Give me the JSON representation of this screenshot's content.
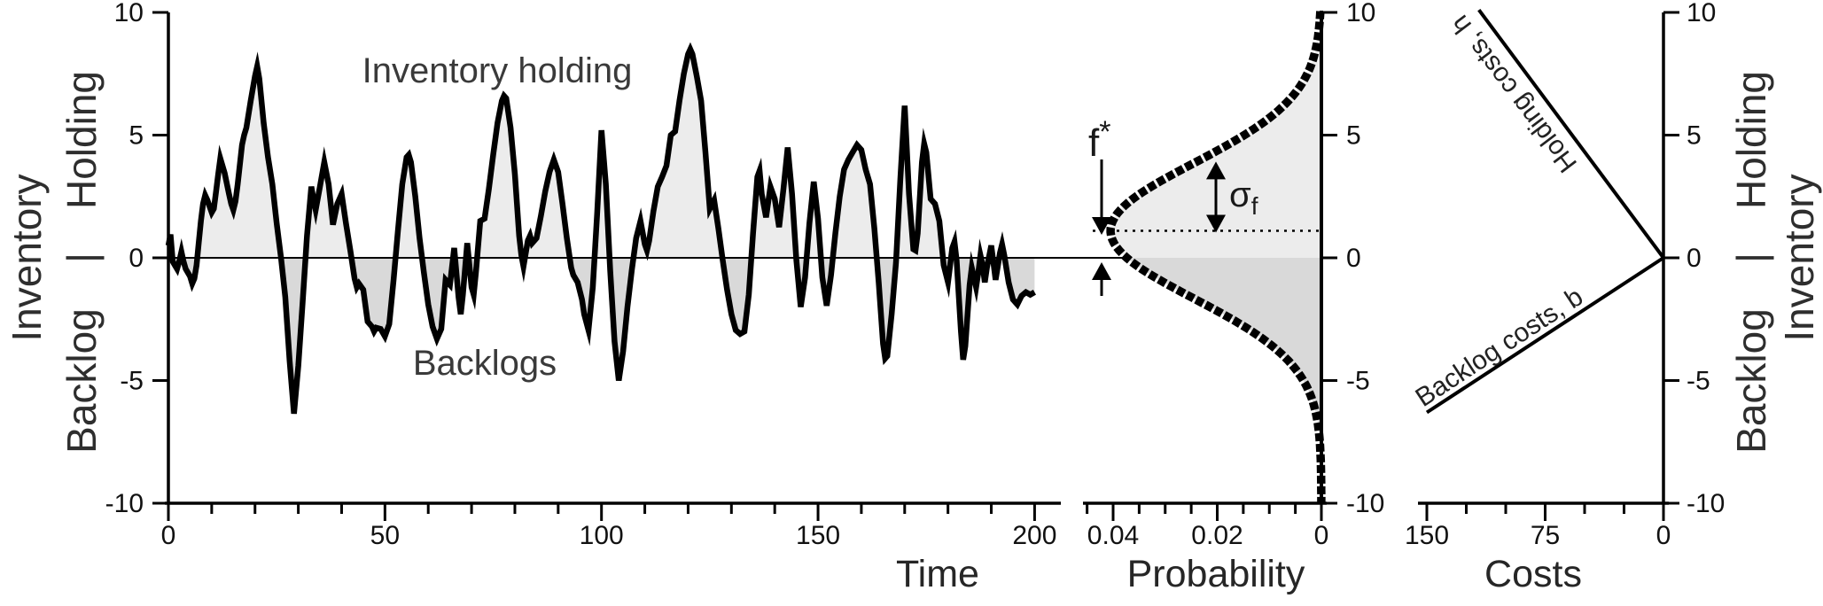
{
  "figure": {
    "colors": {
      "ink": "#000000",
      "tick_text": "#111111",
      "label_text": "#2e2e2e",
      "annotation_text": "#3a3a3a",
      "fill_above_zero": "#ececec",
      "fill_below_zero": "#d9d9d9",
      "background": "#ffffff"
    }
  },
  "chart_data": [
    {
      "id": "inventory-time-series",
      "type": "line",
      "xlabel": "Time",
      "y_axis_label": {
        "outer": "Inventory",
        "upper": "Holding",
        "divider": "|",
        "lower": "Backlog"
      },
      "xlim": [
        0,
        200
      ],
      "ylim": [
        -10,
        10
      ],
      "x_major_ticks": [
        0,
        50,
        100,
        150,
        200
      ],
      "x_minor_tick_step": 10,
      "y_major_ticks": [
        10,
        5,
        0,
        -5,
        -10
      ],
      "zero_line": true,
      "grid": false,
      "annotations": {
        "above_label": "Inventory holding",
        "below_label": "Backlogs"
      },
      "series": [
        {
          "name": "inventory",
          "points": [
            [
              0,
              0.5
            ],
            [
              0.5,
              0.95
            ],
            [
              1,
              -0.15
            ],
            [
              1.5,
              -0.3
            ],
            [
              2,
              -0.45
            ],
            [
              2.5,
              -0.15
            ],
            [
              3,
              0.25
            ],
            [
              3.5,
              -0.15
            ],
            [
              4,
              -0.45
            ],
            [
              5,
              -0.75
            ],
            [
              5.5,
              -1.05
            ],
            [
              6,
              -0.85
            ],
            [
              6.5,
              -0.3
            ],
            [
              7,
              0.6
            ],
            [
              7.5,
              1.5
            ],
            [
              8,
              2.2
            ],
            [
              8.5,
              2.55
            ],
            [
              9,
              2.35
            ],
            [
              10,
              1.85
            ],
            [
              10.5,
              2.0
            ],
            [
              11,
              2.7
            ],
            [
              11.5,
              3.4
            ],
            [
              12,
              4.05
            ],
            [
              13,
              3.45
            ],
            [
              14,
              2.6
            ],
            [
              14.5,
              2.2
            ],
            [
              15,
              1.95
            ],
            [
              15.5,
              2.3
            ],
            [
              16,
              3.0
            ],
            [
              17,
              4.6
            ],
            [
              17.5,
              5.0
            ],
            [
              18,
              5.3
            ],
            [
              19,
              6.4
            ],
            [
              20,
              7.4
            ],
            [
              20.5,
              7.8
            ],
            [
              21,
              7.3
            ],
            [
              22,
              5.5
            ],
            [
              23,
              4.1
            ],
            [
              24,
              3.0
            ],
            [
              25,
              1.4
            ],
            [
              26,
              0.0
            ],
            [
              27,
              -1.6
            ],
            [
              28,
              -4.2
            ],
            [
              29,
              -6.35
            ],
            [
              30,
              -4.4
            ],
            [
              31,
              -1.8
            ],
            [
              32,
              0.9
            ],
            [
              33,
              2.9
            ],
            [
              33.5,
              2.4
            ],
            [
              34,
              1.95
            ],
            [
              35,
              2.9
            ],
            [
              36,
              3.9
            ],
            [
              37,
              3.0
            ],
            [
              38,
              1.35
            ],
            [
              39,
              2.2
            ],
            [
              40,
              2.6
            ],
            [
              41,
              1.4
            ],
            [
              42,
              0.3
            ],
            [
              43,
              -0.85
            ],
            [
              43.5,
              -1.2
            ],
            [
              44,
              -1.05
            ],
            [
              45,
              -1.3
            ],
            [
              46,
              -2.6
            ],
            [
              47,
              -2.8
            ],
            [
              47.5,
              -3.0
            ],
            [
              48,
              -2.85
            ],
            [
              49,
              -2.9
            ],
            [
              50,
              -3.2
            ],
            [
              51,
              -2.7
            ],
            [
              52,
              -0.9
            ],
            [
              53,
              1.1
            ],
            [
              54,
              3.0
            ],
            [
              55,
              4.1
            ],
            [
              55.5,
              4.2
            ],
            [
              56,
              3.9
            ],
            [
              57,
              2.5
            ],
            [
              58,
              0.8
            ],
            [
              59,
              -0.6
            ],
            [
              60,
              -1.9
            ],
            [
              61,
              -2.8
            ],
            [
              62,
              -3.3
            ],
            [
              63,
              -2.9
            ],
            [
              64,
              -0.9
            ],
            [
              65,
              -1.1
            ],
            [
              66,
              0.4
            ],
            [
              67,
              -1.6
            ],
            [
              67.5,
              -2.3
            ],
            [
              68,
              -1.5
            ],
            [
              69,
              0.6
            ],
            [
              70,
              -1.2
            ],
            [
              70.5,
              -1.5
            ],
            [
              71,
              -0.6
            ],
            [
              72,
              1.5
            ],
            [
              73,
              1.6
            ],
            [
              74,
              2.8
            ],
            [
              75,
              4.2
            ],
            [
              76,
              5.5
            ],
            [
              77,
              6.4
            ],
            [
              77.5,
              6.6
            ],
            [
              78,
              6.5
            ],
            [
              79,
              5.3
            ],
            [
              80,
              3.4
            ],
            [
              81,
              0.9
            ],
            [
              81.5,
              0.1
            ],
            [
              82,
              -0.35
            ],
            [
              83,
              0.7
            ],
            [
              83.5,
              0.9
            ],
            [
              84,
              0.6
            ],
            [
              85,
              0.8
            ],
            [
              86,
              1.7
            ],
            [
              87,
              2.7
            ],
            [
              88,
              3.5
            ],
            [
              89,
              4.0
            ],
            [
              90,
              3.5
            ],
            [
              91,
              2.2
            ],
            [
              92,
              0.8
            ],
            [
              93,
              -0.4
            ],
            [
              93.5,
              -0.7
            ],
            [
              94.5,
              -1.0
            ],
            [
              95.5,
              -1.7
            ],
            [
              96,
              -2.3
            ],
            [
              97,
              -2.95
            ],
            [
              98,
              -1.2
            ],
            [
              99,
              1.8
            ],
            [
              100,
              5.2
            ],
            [
              101,
              3.0
            ],
            [
              102,
              -0.5
            ],
            [
              103,
              -3.4
            ],
            [
              104,
              -5.0
            ],
            [
              105,
              -3.8
            ],
            [
              106,
              -2.0
            ],
            [
              107,
              -0.5
            ],
            [
              108,
              0.8
            ],
            [
              109,
              1.5
            ],
            [
              110,
              0.55
            ],
            [
              110.5,
              0.3
            ],
            [
              111,
              0.7
            ],
            [
              112,
              1.9
            ],
            [
              113,
              2.9
            ],
            [
              114,
              3.3
            ],
            [
              115,
              3.75
            ],
            [
              116,
              5.0
            ],
            [
              117,
              5.15
            ],
            [
              118,
              6.4
            ],
            [
              119,
              7.5
            ],
            [
              120,
              8.3
            ],
            [
              120.5,
              8.5
            ],
            [
              121,
              8.3
            ],
            [
              122,
              7.4
            ],
            [
              123,
              6.4
            ],
            [
              124,
              4.3
            ],
            [
              125,
              2.0
            ],
            [
              126,
              2.35
            ],
            [
              127,
              1.2
            ],
            [
              128,
              -0.1
            ],
            [
              129,
              -1.3
            ],
            [
              130,
              -2.3
            ],
            [
              131,
              -2.95
            ],
            [
              132,
              -3.1
            ],
            [
              133,
              -3.0
            ],
            [
              134,
              -1.5
            ],
            [
              135,
              1.0
            ],
            [
              136,
              3.3
            ],
            [
              136.5,
              3.55
            ],
            [
              137,
              2.6
            ],
            [
              138,
              1.65
            ],
            [
              139,
              2.9
            ],
            [
              140,
              2.4
            ],
            [
              141,
              1.25
            ],
            [
              142,
              2.8
            ],
            [
              143,
              4.5
            ],
            [
              144,
              2.6
            ],
            [
              145,
              -0.1
            ],
            [
              146,
              -2.0
            ],
            [
              147,
              -0.8
            ],
            [
              148,
              1.4
            ],
            [
              149,
              3.1
            ],
            [
              150,
              1.6
            ],
            [
              151,
              -0.8
            ],
            [
              152,
              -1.95
            ],
            [
              153,
              -0.7
            ],
            [
              154,
              1.0
            ],
            [
              155,
              2.5
            ],
            [
              156,
              3.6
            ],
            [
              157,
              4.0
            ],
            [
              158,
              4.3
            ],
            [
              159,
              4.6
            ],
            [
              160,
              4.4
            ],
            [
              161,
              3.6
            ],
            [
              162,
              3.0
            ],
            [
              163,
              1.2
            ],
            [
              164,
              -1.0
            ],
            [
              165,
              -3.5
            ],
            [
              165.5,
              -4.1
            ],
            [
              166,
              -4.0
            ],
            [
              167,
              -2.3
            ],
            [
              168,
              -0.2
            ],
            [
              169,
              3.2
            ],
            [
              170,
              6.2
            ],
            [
              171,
              2.6
            ],
            [
              172,
              0.35
            ],
            [
              172.5,
              0.3
            ],
            [
              173,
              1.0
            ],
            [
              174,
              3.9
            ],
            [
              174.5,
              4.65
            ],
            [
              175,
              4.3
            ],
            [
              176,
              2.4
            ],
            [
              177,
              2.2
            ],
            [
              178,
              1.5
            ],
            [
              179,
              -0.3
            ],
            [
              180,
              -1.0
            ],
            [
              181,
              0.4
            ],
            [
              181.5,
              0.65
            ],
            [
              182,
              -0.1
            ],
            [
              183,
              -3.0
            ],
            [
              183.5,
              -4.15
            ],
            [
              184,
              -3.6
            ],
            [
              185,
              -1.1
            ],
            [
              185.5,
              -0.4
            ],
            [
              186,
              -0.8
            ],
            [
              186.5,
              -1.2
            ],
            [
              187,
              -0.6
            ],
            [
              187.5,
              0.1
            ],
            [
              188,
              -0.3
            ],
            [
              188.5,
              -1.0
            ],
            [
              189,
              -0.4
            ],
            [
              190,
              0.5
            ],
            [
              191,
              -0.9
            ],
            [
              192,
              0.2
            ],
            [
              192.5,
              0.55
            ],
            [
              193,
              0.1
            ],
            [
              194,
              -1.0
            ],
            [
              195,
              -1.7
            ],
            [
              196,
              -1.9
            ],
            [
              197,
              -1.55
            ],
            [
              198,
              -1.4
            ],
            [
              199,
              -1.5
            ],
            [
              200,
              -1.4
            ]
          ]
        }
      ]
    },
    {
      "id": "inventory-probability-distribution",
      "type": "area",
      "xlabel": "Probability",
      "xlim": [
        0.046,
        0
      ],
      "ylim": [
        -10,
        10
      ],
      "x_major_ticks": [
        0.04,
        0.02,
        0
      ],
      "x_minor_tick_step": 0.005,
      "y_major_ticks": [
        10,
        5,
        0,
        -5,
        -10
      ],
      "zero_line": true,
      "distribution": {
        "shape": "gaussian",
        "mean": 1.1,
        "sigma": 2.75,
        "peak_probability": 0.0405
      },
      "annotations": {
        "optimal_level_label": "f",
        "optimal_level_superscript": "*",
        "sigma_label": "σ",
        "sigma_subscript": "f",
        "mean_marked_with": "dotted-line",
        "sigma_arrow_span": [
          1.1,
          3.85
        ]
      }
    },
    {
      "id": "cost-structure",
      "type": "line",
      "xlabel": "Costs",
      "xlim": [
        150,
        0
      ],
      "ylim": [
        -10,
        10
      ],
      "x_major_ticks": [
        150,
        75,
        0
      ],
      "x_minor_tick_step": 25,
      "y_major_ticks": [
        10,
        5,
        0,
        -5,
        -10
      ],
      "y_axis_label": {
        "outer": "Inventory",
        "upper": "Holding",
        "divider": "|",
        "lower": "Backlog"
      },
      "lines": [
        {
          "name": "holding-cost-line",
          "label": "Holding costs, h",
          "points": [
            [
              117,
              10.1
            ],
            [
              0,
              0
            ]
          ]
        },
        {
          "name": "backlog-cost-line",
          "label": "Backlog costs, b",
          "points": [
            [
              150,
              -6.3
            ],
            [
              0,
              0
            ]
          ]
        }
      ]
    }
  ]
}
